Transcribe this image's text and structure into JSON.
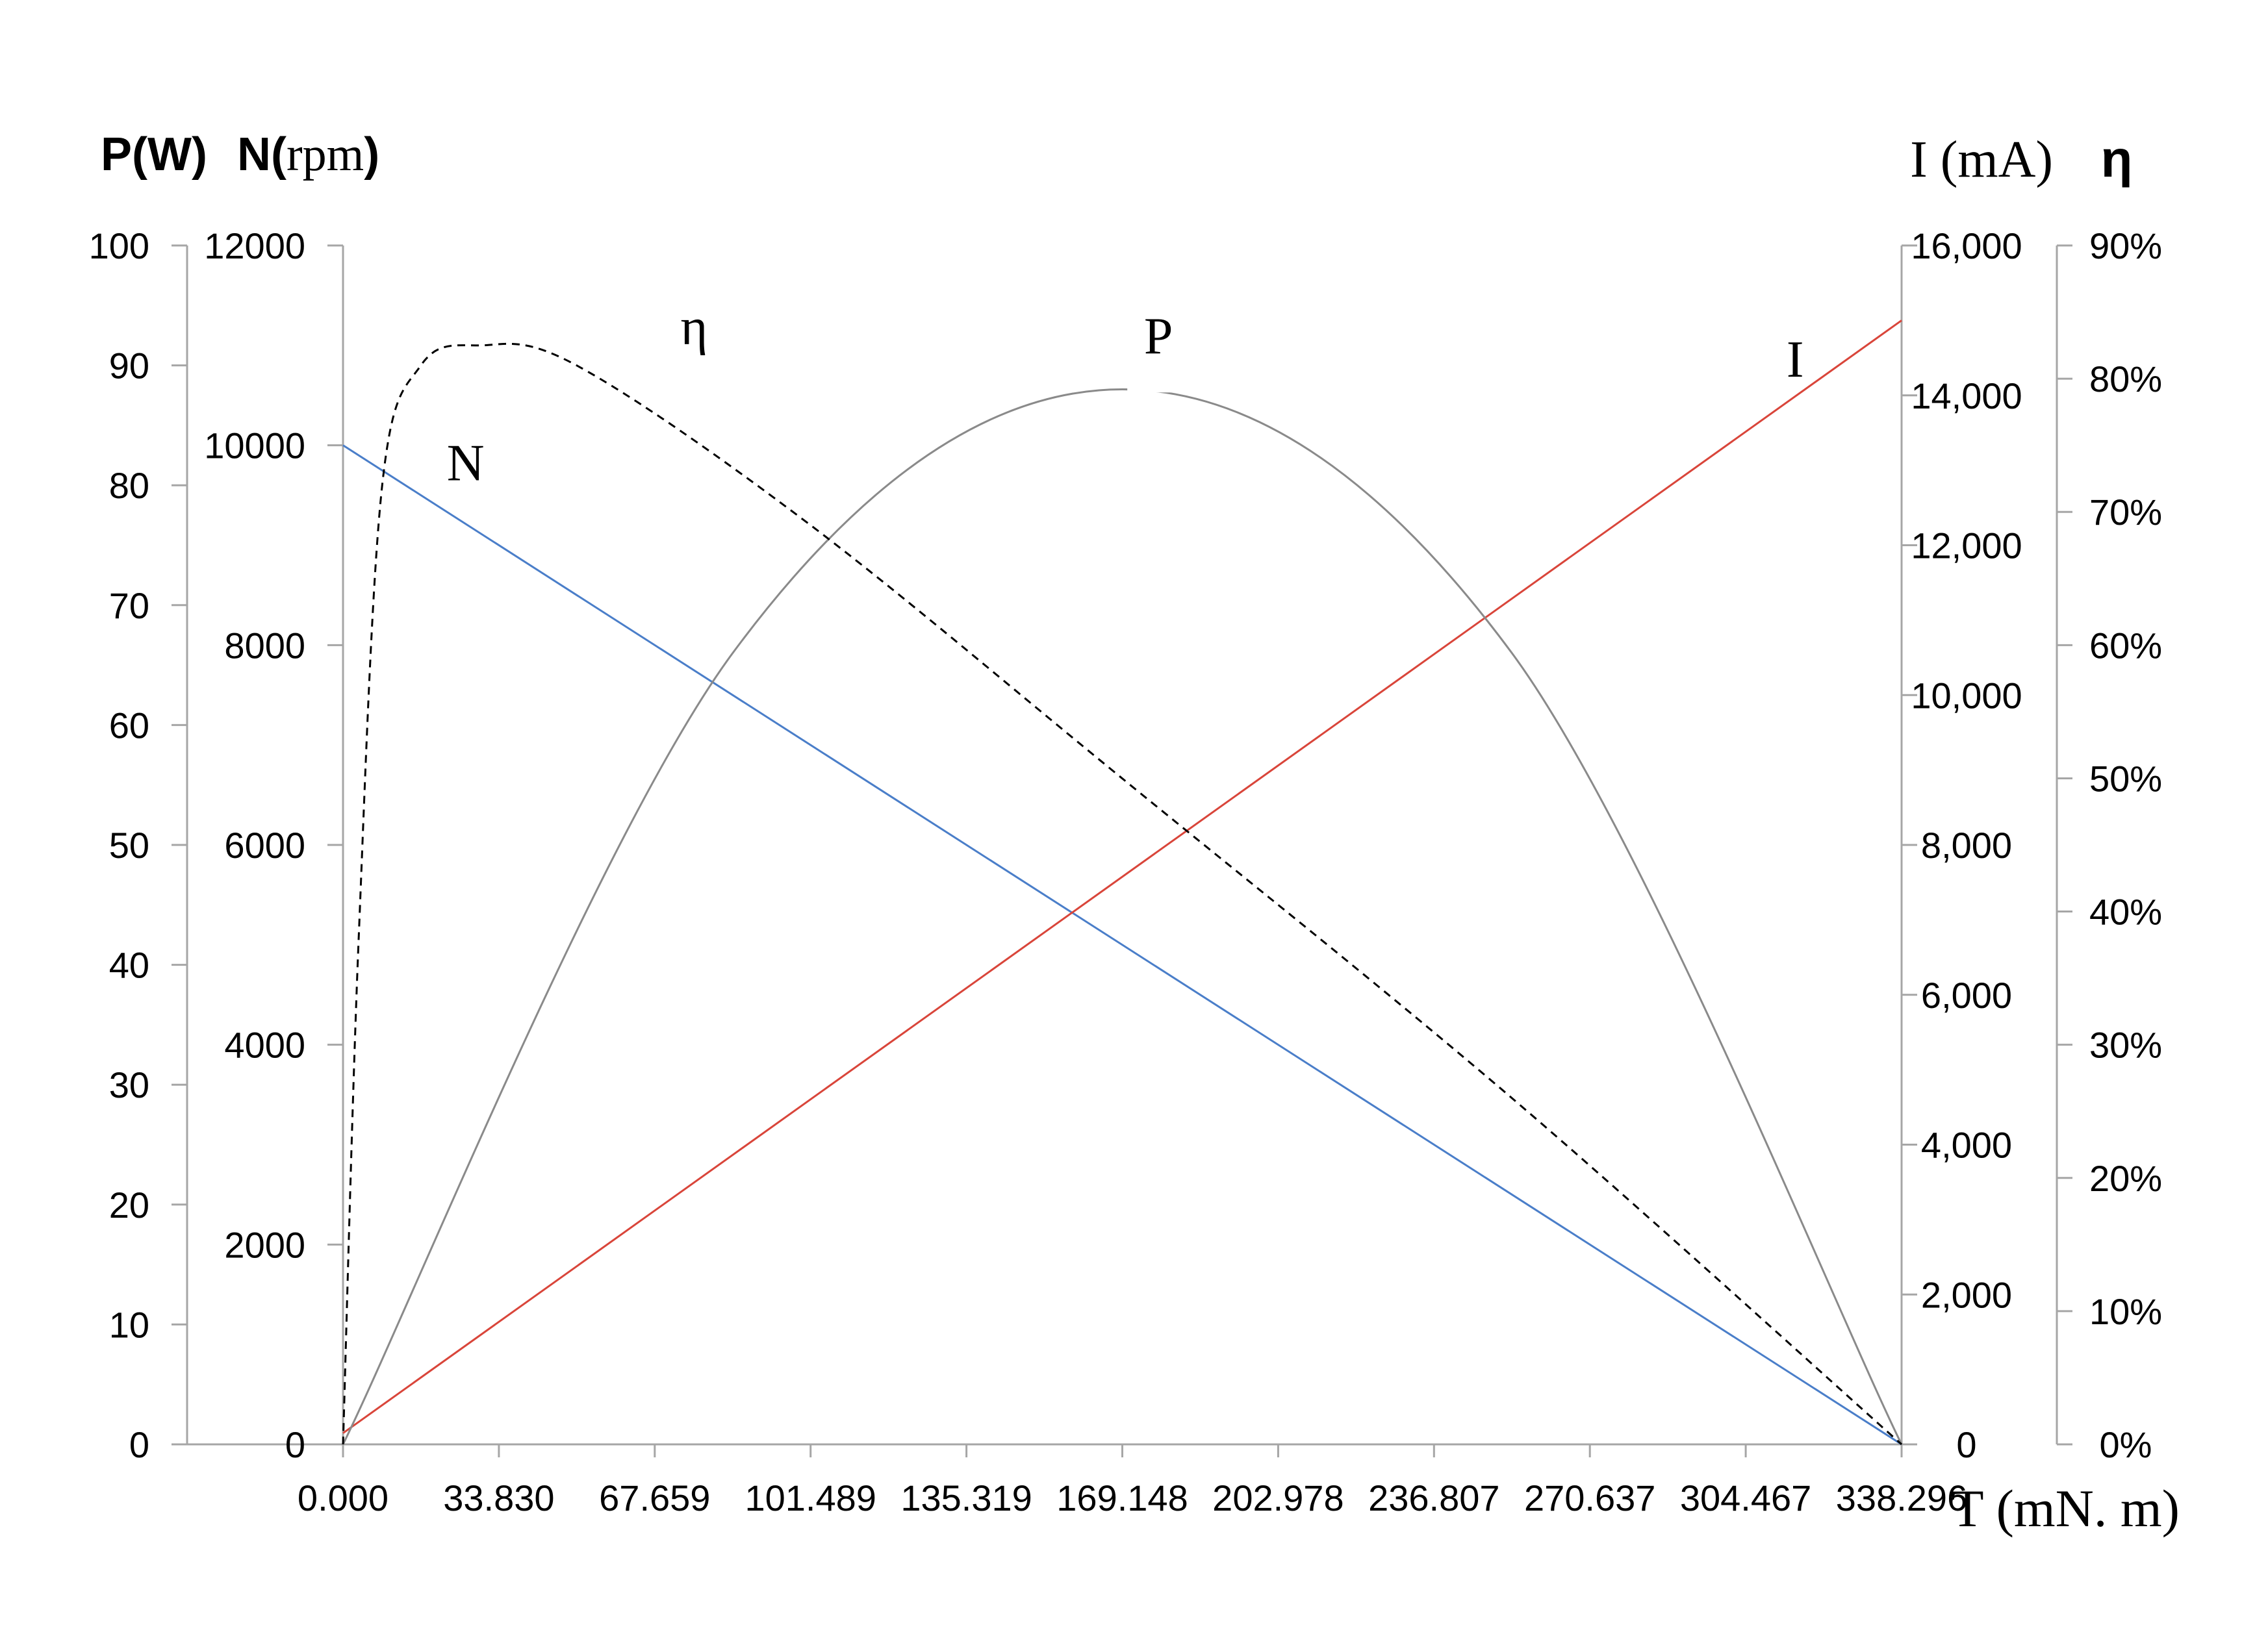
{
  "chart_data": {
    "type": "line",
    "title": "",
    "colors": {
      "N": "#4a7ec9",
      "I": "#d9453a",
      "P": "#8a8a8a",
      "eta": "#000000",
      "axis": "#a6a6a6"
    },
    "x": {
      "label": "T (mN. m)",
      "range": [
        0,
        338.296
      ],
      "ticks": [
        "0.000",
        "33.830",
        "67.659",
        "101.489",
        "135.319",
        "169.148",
        "202.978",
        "236.807",
        "270.637",
        "304.467",
        "338.296"
      ]
    },
    "axes": {
      "P": {
        "label_bold": "P(W)",
        "range": [
          0,
          100
        ],
        "ticks": [
          "0",
          "10",
          "20",
          "30",
          "40",
          "50",
          "60",
          "70",
          "80",
          "90",
          "100"
        ]
      },
      "N": {
        "label_bold": "N(",
        "label_unit": "rpm",
        "label_close": ")",
        "range": [
          0,
          12000
        ],
        "ticks": [
          "0",
          "2000",
          "4000",
          "6000",
          "8000",
          "10000",
          "12000"
        ]
      },
      "I": {
        "label": "I (mA)",
        "range": [
          0,
          16000
        ],
        "ticks": [
          "0",
          "2,000",
          "4,000",
          "6,000",
          "8,000",
          "10,000",
          "12,000",
          "14,000",
          "16,000"
        ]
      },
      "eta": {
        "label": "η",
        "range": [
          0,
          90
        ],
        "ticks": [
          "0%",
          "10%",
          "20%",
          "30%",
          "40%",
          "50%",
          "60%",
          "70%",
          "80%",
          "90%"
        ]
      }
    },
    "series": [
      {
        "name": "N",
        "axis": "N",
        "x": [
          0,
          338.296
        ],
        "values": [
          10000,
          0
        ]
      },
      {
        "name": "I",
        "axis": "I",
        "x": [
          0,
          338.296
        ],
        "values": [
          150,
          15000
        ]
      },
      {
        "name": "P",
        "axis": "P",
        "x": [
          0,
          84.574,
          169.148,
          253.722,
          338.296
        ],
        "values": [
          0,
          66,
          88,
          66,
          0
        ]
      },
      {
        "name": "η",
        "axis": "eta",
        "x": [
          0,
          3.4,
          8.5,
          16.9,
          29.5,
          50.7,
          101.5,
          169.1,
          253.7,
          338.3
        ],
        "values": [
          0,
          38,
          72,
          81,
          82.5,
          81,
          69,
          50,
          26,
          0
        ]
      }
    ],
    "curve_labels": [
      {
        "text": "N",
        "x": 26.6,
        "axis": "N",
        "y": 9650
      },
      {
        "text": "η",
        "x": 76.2,
        "axis": "eta",
        "y": 82.6
      },
      {
        "text": "P",
        "x": 177.0,
        "axis": "P",
        "y": 91
      },
      {
        "text": "I",
        "x": 315.2,
        "axis": "I",
        "y": 14250
      }
    ]
  }
}
